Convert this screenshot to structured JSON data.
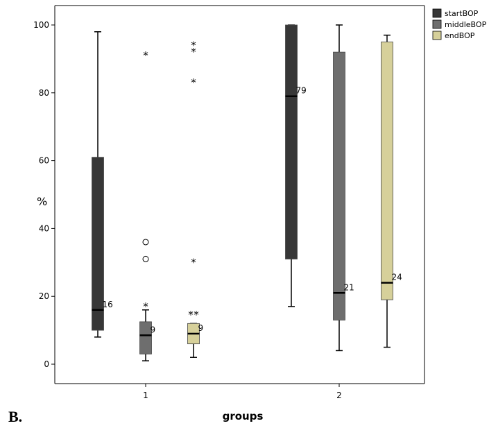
{
  "panel_label": "B.",
  "chart_data": {
    "type": "boxplot",
    "ylabel": "%",
    "xlabel": "groups",
    "ylim": [
      0,
      100
    ],
    "yticks": [
      0,
      20,
      40,
      60,
      80,
      100
    ],
    "categories": [
      "1",
      "2"
    ],
    "legend_position": "top-right",
    "series": [
      {
        "name": "startBOP",
        "color": "#373737",
        "boxes": [
          {
            "group": "1",
            "min": 8,
            "q1": 10,
            "median": 16,
            "q3": 61,
            "max": 98,
            "median_label": "16",
            "outliers": [],
            "extremes": []
          },
          {
            "group": "2",
            "min": 17,
            "q1": 31,
            "median": 79,
            "q3": 100,
            "max": 100,
            "median_label": "79",
            "outliers": [],
            "extremes": []
          }
        ]
      },
      {
        "name": "middleBOP",
        "color": "#6e6e6e",
        "boxes": [
          {
            "group": "1",
            "min": 1,
            "q1": 3,
            "median": 8.5,
            "q3": 12.5,
            "max": 16,
            "median_label": "9",
            "outliers": [
              36,
              31
            ],
            "extremes": [
              92,
              18
            ]
          },
          {
            "group": "2",
            "min": 4,
            "q1": 13,
            "median": 21,
            "q3": 92,
            "max": 100,
            "median_label": "21",
            "outliers": [],
            "extremes": []
          }
        ]
      },
      {
        "name": "endBOP",
        "color": "#d6d09a",
        "boxes": [
          {
            "group": "1",
            "min": 2,
            "q1": 6,
            "median": 9,
            "q3": 12,
            "max": 12,
            "median_label": "9",
            "outliers": [],
            "extremes": [
              95,
              93,
              84,
              31,
              15.5,
              15.5
            ]
          },
          {
            "group": "2",
            "min": 5,
            "q1": 19,
            "median": 24,
            "q3": 95,
            "max": 97,
            "median_label": "24",
            "outliers": [],
            "extremes": []
          }
        ]
      }
    ]
  }
}
